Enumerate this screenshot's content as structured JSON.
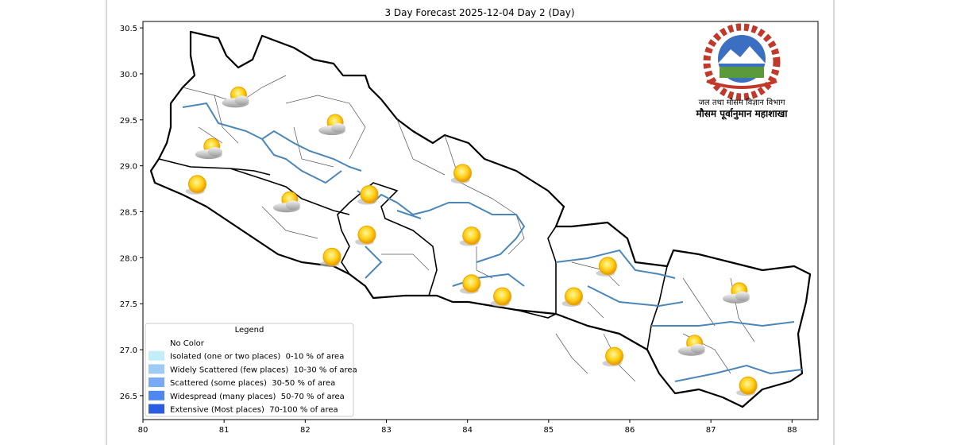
{
  "title": "3 Day Forecast 2025-12-04 Day 2 (Day)",
  "map": {
    "xlim": [
      80,
      88.32
    ],
    "ylim": [
      26.24,
      30.57
    ],
    "xticks": [
      80,
      81,
      82,
      83,
      84,
      85,
      86,
      87,
      88
    ],
    "yticks": [
      26.5,
      {
        "value": 27,
        "label": "27.0"
      },
      27.5,
      {
        "value": 28,
        "label": "28.0"
      },
      28.5,
      {
        "value": 29,
        "label": "29.0"
      },
      29.5,
      {
        "value": 30,
        "label": "30.0"
      },
      30.5
    ],
    "markers": [
      {
        "lon": 81.16,
        "lat": 29.72,
        "icon": "cloud-sun"
      },
      {
        "lon": 82.35,
        "lat": 29.42,
        "icon": "cloud-sun"
      },
      {
        "lon": 80.83,
        "lat": 29.16,
        "icon": "cloud-sun"
      },
      {
        "lon": 80.67,
        "lat": 28.8,
        "icon": "sun"
      },
      {
        "lon": 81.79,
        "lat": 28.58,
        "icon": "cloud-sun"
      },
      {
        "lon": 83.94,
        "lat": 28.92,
        "icon": "sun"
      },
      {
        "lon": 82.79,
        "lat": 28.69,
        "icon": "sun"
      },
      {
        "lon": 82.76,
        "lat": 28.25,
        "icon": "sun"
      },
      {
        "lon": 82.33,
        "lat": 28.01,
        "icon": "sun"
      },
      {
        "lon": 84.05,
        "lat": 28.24,
        "icon": "sun"
      },
      {
        "lon": 84.05,
        "lat": 27.72,
        "icon": "sun"
      },
      {
        "lon": 84.43,
        "lat": 27.58,
        "icon": "sun"
      },
      {
        "lon": 85.31,
        "lat": 27.58,
        "icon": "sun"
      },
      {
        "lon": 85.73,
        "lat": 27.91,
        "icon": "sun"
      },
      {
        "lon": 87.33,
        "lat": 27.59,
        "icon": "cloud-sun"
      },
      {
        "lon": 86.78,
        "lat": 27.02,
        "icon": "cloud-sun"
      },
      {
        "lon": 85.81,
        "lat": 26.93,
        "icon": "sun"
      },
      {
        "lon": 87.46,
        "lat": 26.61,
        "icon": "sun"
      }
    ]
  },
  "legend": {
    "title": "Legend",
    "items": [
      {
        "label": "No Color"
      },
      {
        "label": "Isolated (one or two places)  0-10 % of area",
        "color": "#c2eefa"
      },
      {
        "label": "Widely Scattered (few places)  10-30 % of area",
        "color": "#9ccbf6"
      },
      {
        "label": "Scattered (some places)  30-50 % of area",
        "color": "#78a9f3"
      },
      {
        "label": "Widespread (many places)  50-70 % of area",
        "color": "#5087ee"
      },
      {
        "label": "Extensive (Most places)  70-100 % of area",
        "color": "#2b5ce2"
      }
    ]
  },
  "logo": {
    "line1": "जल तथा मौसम विज्ञान विभाग",
    "line2": "मौसम पूर्वानुमान महाशाखा"
  }
}
